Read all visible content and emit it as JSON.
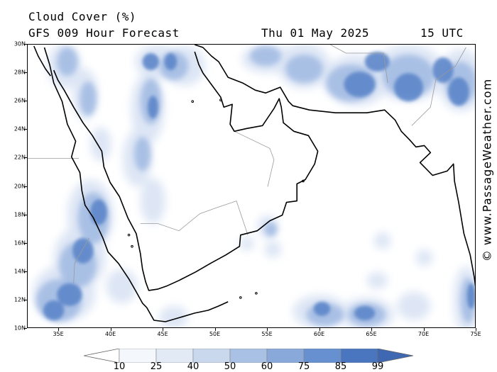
{
  "header": {
    "title": "Cloud Cover (%)",
    "forecast": "GFS 009 Hour Forecast",
    "date": "Thu 01 May 2025",
    "time": "15 UTC"
  },
  "map": {
    "region": "Arabian Peninsula / Arabian Sea",
    "lat_range": [
      10,
      30
    ],
    "lon_range": [
      32,
      75
    ],
    "lat_labels": [
      "30N",
      "28N",
      "26N",
      "24N",
      "22N",
      "20N",
      "18N",
      "16N",
      "14N",
      "12N",
      "10N"
    ],
    "lon_labels": [
      "35E",
      "40E",
      "45E",
      "50E",
      "55E",
      "60E",
      "65E",
      "70E",
      "75E"
    ],
    "coast_color": "#000000",
    "border_color": "#9a9a9a"
  },
  "watermark": "© www.PassageWeather.com",
  "colorbar": {
    "levels": [
      "10",
      "25",
      "40",
      "50",
      "60",
      "75",
      "85",
      "99"
    ],
    "colors": [
      "#ffffff",
      "#f4f7fc",
      "#e2eaf6",
      "#cad8ee",
      "#a9c1e4",
      "#89a9da",
      "#6690cf",
      "#4a76c0",
      "#3f68b2"
    ]
  },
  "palette": {
    "cloud_light": "#dbe5f4",
    "cloud_mid": "#a4bde3",
    "cloud_dark": "#5c86c9",
    "cloud_core": "#3f68b2"
  }
}
